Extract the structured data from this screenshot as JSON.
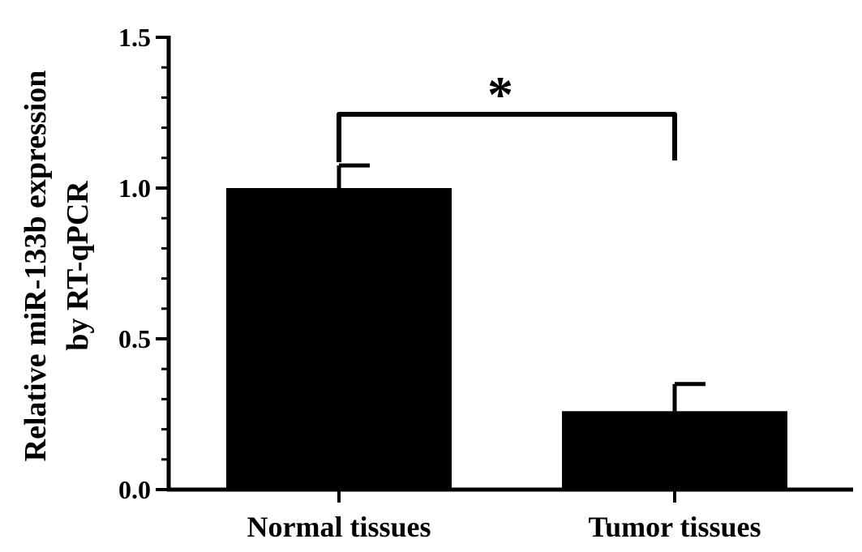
{
  "chart_data": {
    "type": "bar",
    "categories": [
      "Normal tissues",
      "Tumor tissues"
    ],
    "values": [
      1.0,
      0.26
    ],
    "error_upper": [
      1.075,
      0.35
    ],
    "ylabel_line1": "Relative miR-133b expression",
    "ylabel_line2": "by RT-qPCR",
    "ylim": [
      0.0,
      1.5
    ],
    "yticks": [
      0.0,
      0.5,
      1.0,
      1.5
    ],
    "ytick_labels": [
      "0.0",
      "0.5",
      "1.0",
      "1.5"
    ],
    "significance": {
      "label": "*",
      "between": [
        0,
        1
      ]
    },
    "bar_color": "#000000"
  }
}
